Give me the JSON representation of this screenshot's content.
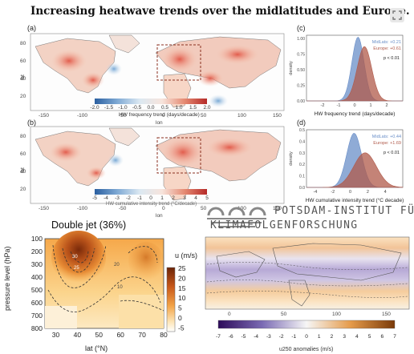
{
  "header": {
    "title": "Increasing heatwave trends over the midlatitudes and Europe."
  },
  "panel_a": {
    "label": "(a)",
    "map_ylabel": "lat",
    "map_xlabel": "lon",
    "lat_ticks": [
      "80",
      "60",
      "40",
      "20"
    ],
    "lon_ticks": [
      "-150",
      "-100",
      "-50",
      "0",
      "50",
      "100",
      "150"
    ],
    "colorbar_ticks": [
      "-2.0",
      "-1.5",
      "-1.0",
      "-0.5",
      "0.0",
      "0.5",
      "1.0",
      "1.5",
      "2.0"
    ],
    "colorbar_label": "HW frequency trend (days/decade)"
  },
  "panel_b": {
    "label": "(b)",
    "map_ylabel": "lat",
    "map_xlabel": "lon",
    "lat_ticks": [
      "80",
      "60",
      "40",
      "20"
    ],
    "lon_ticks": [
      "-150",
      "-100",
      "-50",
      "0",
      "50",
      "100",
      "150"
    ],
    "colorbar_ticks": [
      "-5",
      "-4",
      "-3",
      "-2",
      "-1",
      "0",
      "1",
      "2",
      "3",
      "4",
      "5"
    ],
    "colorbar_label": "HW cumulative intensity trend (°C/decade)"
  },
  "logo": {
    "line1": "POTSDAM-INSTITUT FÜR",
    "line2": "KLIMAFOLGENFORSCHUNG"
  },
  "panel_d_bottom": {
    "title": "Double jet (36%)",
    "ylabel": "pressure level (hPa)",
    "xlabel": "lat (°N)",
    "cbar_title": "u (m/s)",
    "contour_labels": [
      "30",
      "25",
      "20",
      "10",
      "10",
      "10"
    ]
  },
  "panel_e": {
    "colorbar_label": "u250 anomalies (m/s)",
    "lon_ticks": [
      "0",
      "50",
      "100",
      "150"
    ]
  },
  "colors": {
    "midlats": "#6a8fc8",
    "europe": "#b05a4a",
    "warm": "#c0392b",
    "cool": "#3a6fb0"
  },
  "chart_data": [
    {
      "type": "area",
      "panel": "(c)",
      "xlabel": "HW frequency trend (days/decade)",
      "ylabel": "density",
      "xlim": [
        -3,
        3
      ],
      "ylim": [
        0,
        1.05
      ],
      "xticks": [
        "-2",
        "-1",
        "0",
        "1",
        "2"
      ],
      "yticks": [
        "0.00",
        "0.25",
        "0.50",
        "0.75",
        "1.00"
      ],
      "series": [
        {
          "name": "MidLats",
          "stat": "+0.21",
          "color": "#6a8fc8",
          "mean": 0.21,
          "sd": 0.38,
          "peak": 1.02
        },
        {
          "name": "Europe",
          "stat": "+0.61",
          "color": "#b05a4a",
          "mean": 0.61,
          "sd": 0.45,
          "peak": 0.87
        }
      ],
      "annotation": "p < 0.01"
    },
    {
      "type": "area",
      "panel": "(d)",
      "xlabel": "HW cumulative intensity trend (°C decade)",
      "ylabel": "density",
      "xlim": [
        -5,
        6
      ],
      "ylim": [
        0,
        0.5
      ],
      "xticks": [
        "-4",
        "-2",
        "0",
        "2",
        "4"
      ],
      "yticks": [
        "0.0",
        "0.1",
        "0.2",
        "0.3",
        "0.4",
        "0.5"
      ],
      "series": [
        {
          "name": "MidLats",
          "stat": "+0.44",
          "color": "#6a8fc8",
          "mean": 0.44,
          "sd": 0.85,
          "peak": 0.47
        },
        {
          "name": "Europe",
          "stat": "+1.69",
          "color": "#b05a4a",
          "mean": 1.69,
          "sd": 1.3,
          "peak": 0.3
        }
      ],
      "annotation": "p < 0.01"
    },
    {
      "type": "heatmap",
      "panel": "Double jet (36%)",
      "xlabel": "lat (°N)",
      "ylabel": "pressure level (hPa)",
      "xlim": [
        25,
        80
      ],
      "ylim": [
        800,
        100
      ],
      "xticks": [
        "30",
        "40",
        "50",
        "60",
        "70",
        "80"
      ],
      "yticks": [
        "100",
        "200",
        "300",
        "400",
        "500",
        "600",
        "700",
        "800"
      ],
      "colorbar_ticks": [
        "25",
        "20",
        "15",
        "10",
        "5",
        "0",
        "-5"
      ],
      "colorbar_label": "u (m/s)"
    },
    {
      "type": "heatmap",
      "panel": "u250 anomalies",
      "colorbar_ticks": [
        "-7",
        "-6",
        "-5",
        "-4",
        "-3",
        "-2",
        "-1",
        "0",
        "1",
        "2",
        "3",
        "4",
        "5",
        "6",
        "7"
      ],
      "colorbar_label": "u250 anomalies (m/s)"
    }
  ]
}
